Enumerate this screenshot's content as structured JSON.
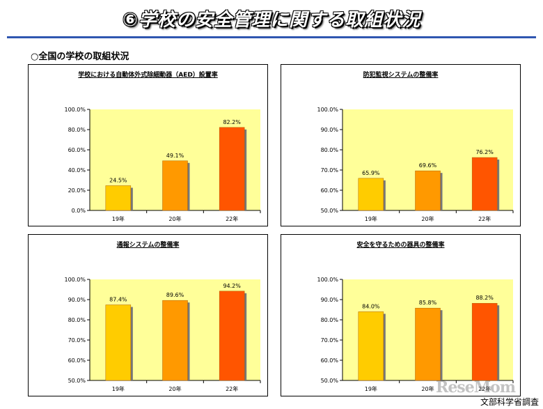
{
  "page": {
    "title": "⑥学校の安全管理に関する取組状況",
    "subheading": "○全国の学校の取組状況",
    "source": "文部科学省調査",
    "watermark": "ReseMom"
  },
  "colors": {
    "plot_background": "#ffff99",
    "rule": "#2f56b0",
    "bar_19": "#ffcc00",
    "bar_20": "#ff9900",
    "bar_22": "#ff5500"
  },
  "chart_data": [
    {
      "type": "bar",
      "title": "学校における自動体外式除細動器（AED）設置率",
      "categories": [
        "19年",
        "20年",
        "22年"
      ],
      "values": [
        24.5,
        49.1,
        82.2
      ],
      "data_labels": [
        "24.5%",
        "49.1%",
        "82.2%"
      ],
      "ylim": [
        0,
        100
      ],
      "yticks": [
        0,
        20,
        40,
        60,
        80,
        100
      ],
      "ytick_labels": [
        "0.0%",
        "20.0%",
        "40.0%",
        "60.0%",
        "80.0%",
        "100.0%"
      ],
      "grid": false,
      "legend": "none"
    },
    {
      "type": "bar",
      "title": "防犯監視システムの整備率",
      "categories": [
        "19年",
        "20年",
        "22年"
      ],
      "values": [
        65.9,
        69.6,
        76.2
      ],
      "data_labels": [
        "65.9%",
        "69.6%",
        "76.2%"
      ],
      "ylim": [
        50,
        100
      ],
      "yticks": [
        50,
        60,
        70,
        80,
        90,
        100
      ],
      "ytick_labels": [
        "50.0%",
        "60.0%",
        "70.0%",
        "80.0%",
        "90.0%",
        "100.0%"
      ],
      "grid": false,
      "legend": "none"
    },
    {
      "type": "bar",
      "title": "通報システムの整備率",
      "categories": [
        "19年",
        "20年",
        "22年"
      ],
      "values": [
        87.4,
        89.6,
        94.2
      ],
      "data_labels": [
        "87.4%",
        "89.6%",
        "94.2%"
      ],
      "ylim": [
        50,
        100
      ],
      "yticks": [
        50,
        60,
        70,
        80,
        90,
        100
      ],
      "ytick_labels": [
        "50.0%",
        "60.0%",
        "70.0%",
        "80.0%",
        "90.0%",
        "100.0%"
      ],
      "grid": false,
      "legend": "none"
    },
    {
      "type": "bar",
      "title": "安全を守るための器具の整備率",
      "categories": [
        "19年",
        "20年",
        "22年"
      ],
      "values": [
        84.0,
        85.8,
        88.2
      ],
      "data_labels": [
        "84.0%",
        "85.8%",
        "88.2%"
      ],
      "ylim": [
        50,
        100
      ],
      "yticks": [
        50,
        60,
        70,
        80,
        90,
        100
      ],
      "ytick_labels": [
        "50.0%",
        "60.0%",
        "70.0%",
        "80.0%",
        "90.0%",
        "100.0%"
      ],
      "grid": false,
      "legend": "none"
    }
  ]
}
